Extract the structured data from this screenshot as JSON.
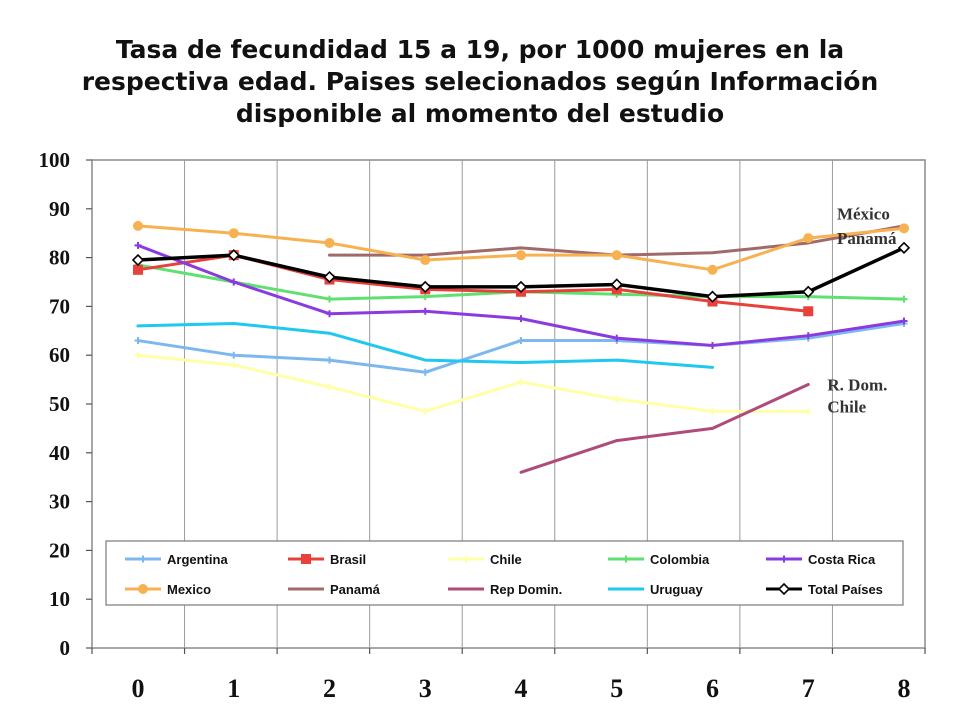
{
  "chart_data": {
    "type": "line",
    "title": "Tasa de fecundidad 15 a 19, por 1000 mujeres en la respectiva edad. Paises selecionados según Información disponible al momento del estudio",
    "xlabel": "",
    "ylabel": "",
    "x": [
      0,
      1,
      2,
      3,
      4,
      5,
      6,
      7,
      8
    ],
    "ylim": [
      0,
      100
    ],
    "yticks": [
      0,
      10,
      20,
      30,
      40,
      50,
      60,
      70,
      80,
      90,
      100
    ],
    "grid": "vertical",
    "legend": "bottom",
    "series": [
      {
        "name": "Argentina",
        "color": "#7cb8ee",
        "marker": "cross",
        "values": [
          63,
          60,
          59,
          56.5,
          63,
          63,
          62,
          63.5,
          66.5
        ]
      },
      {
        "name": "Brasil",
        "color": "#e8403a",
        "marker": "square",
        "values": [
          77.5,
          80.5,
          75.5,
          73.5,
          73,
          73.5,
          71,
          69,
          null
        ]
      },
      {
        "name": "Chile",
        "color": "#ffffa8",
        "marker": "cross",
        "values": [
          60,
          58,
          53.5,
          48.5,
          54.5,
          51,
          48.5,
          48.5,
          null
        ]
      },
      {
        "name": "Colombia",
        "color": "#5fe070",
        "marker": "cross",
        "values": [
          78.5,
          75,
          71.5,
          72,
          73,
          72.5,
          72,
          72,
          71.5
        ]
      },
      {
        "name": "Costa Rica",
        "color": "#8a3be0",
        "marker": "cross",
        "values": [
          82.5,
          75,
          68.5,
          69,
          67.5,
          63.5,
          62,
          64,
          67
        ]
      },
      {
        "name": "Mexico",
        "color": "#f8b150",
        "marker": "circle",
        "values": [
          86.5,
          85,
          83,
          79.5,
          80.5,
          80.5,
          77.5,
          84,
          86
        ]
      },
      {
        "name": "Panamá",
        "color": "#a06a6a",
        "marker": "none",
        "values": [
          null,
          null,
          80.5,
          80.5,
          82,
          80.5,
          81,
          83,
          86.5
        ]
      },
      {
        "name": "Rep Domin.",
        "color": "#b04a7a",
        "marker": "none",
        "values": [
          null,
          null,
          null,
          null,
          36,
          42.5,
          45,
          54,
          null
        ]
      },
      {
        "name": "Uruguay",
        "color": "#1ec8ee",
        "marker": "none",
        "values": [
          66,
          66.5,
          64.5,
          59,
          58.5,
          59,
          57.5,
          null,
          null
        ]
      },
      {
        "name": "Total Países",
        "color": "#000000",
        "marker": "diamond",
        "values": [
          79.5,
          80.5,
          76,
          74,
          74,
          74.5,
          72,
          73,
          82
        ]
      }
    ],
    "annotations": [
      {
        "text": "México",
        "x": 7.3,
        "y": 89
      },
      {
        "text": "Panamá",
        "x": 7.3,
        "y": 84
      },
      {
        "text": "R. Dom.",
        "x": 7.2,
        "y": 54
      },
      {
        "text": "Chile",
        "x": 7.2,
        "y": 49.5
      }
    ]
  }
}
